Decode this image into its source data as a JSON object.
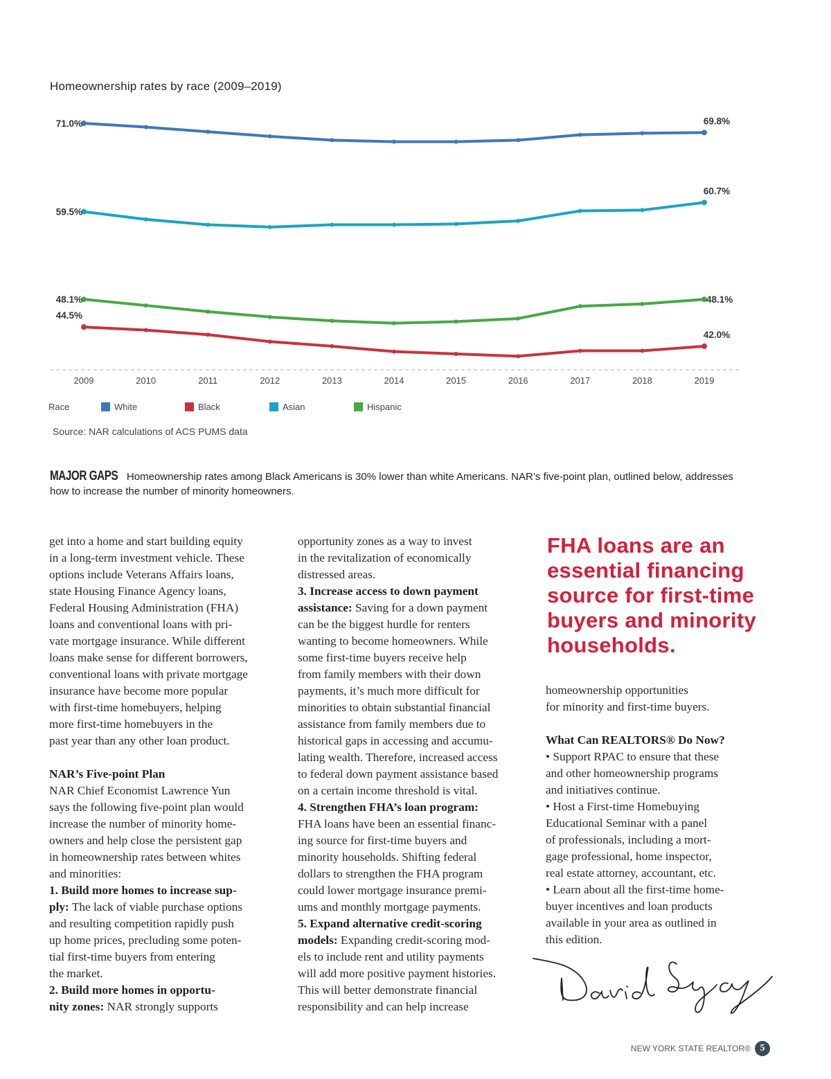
{
  "chart_data": {
    "type": "line",
    "title": "Homeownership rates by race (2009–2019)",
    "xlabel": "",
    "ylabel": "",
    "x": [
      "2009",
      "2010",
      "2011",
      "2012",
      "2013",
      "2014",
      "2015",
      "2016",
      "2017",
      "2018",
      "2019"
    ],
    "ylim": [
      40,
      72
    ],
    "grid": false,
    "legend_title": "Race",
    "legend_position": "bottom-left",
    "series": [
      {
        "name": "White",
        "color": "#3d78bd",
        "values": [
          71.0,
          70.5,
          69.9,
          69.3,
          68.8,
          68.6,
          68.6,
          68.8,
          69.5,
          69.7,
          69.8
        ],
        "start_label": "71.0%",
        "end_label": "69.8%"
      },
      {
        "name": "Black",
        "color": "#c8333d",
        "values": [
          44.5,
          44.1,
          43.5,
          42.6,
          42.0,
          41.3,
          41.0,
          40.7,
          41.4,
          41.4,
          42.0
        ],
        "start_label": "44.5%",
        "end_label": "42.0%"
      },
      {
        "name": "Asian",
        "color": "#1ba3c6",
        "values": [
          59.5,
          58.5,
          57.8,
          57.5,
          57.8,
          57.8,
          57.9,
          58.3,
          59.6,
          59.7,
          60.7
        ],
        "start_label": "59.5%",
        "end_label": "60.7%"
      },
      {
        "name": "Hispanic",
        "color": "#47a844",
        "values": [
          48.1,
          47.3,
          46.5,
          45.8,
          45.3,
          45.0,
          45.2,
          45.6,
          47.2,
          47.5,
          48.1
        ],
        "start_label": "48.1%",
        "end_label": "48.1%"
      }
    ],
    "source": "Source: NAR calculations of ACS PUMS data"
  },
  "caption": {
    "kicker": "MAJOR GAPS",
    "text": "Homeownership rates among Black Americans is 30% lower than white Americans. NAR’s five-point plan, outlined below, addresses how to increase the number of minority homeowners."
  },
  "columns": [
    [
      {
        "t": "get into a home and start building equity"
      },
      {
        "t": "in a long-term investment vehicle. These"
      },
      {
        "t": "options include Veterans Affairs loans,"
      },
      {
        "t": "state Housing Finance Agency loans,"
      },
      {
        "t": "Federal Housing Administration (FHA)"
      },
      {
        "t": "loans and conventional loans with pri-"
      },
      {
        "t": "vate mortgage insurance. While different"
      },
      {
        "t": "loans make sense for different borrowers,"
      },
      {
        "t": "conventional loans with private mortgage"
      },
      {
        "t": "insurance have become more popular"
      },
      {
        "t": "with first-time homebuyers, helping"
      },
      {
        "t": "more first-time homebuyers in the"
      },
      {
        "t": "past year than any other loan product."
      },
      {
        "t": ""
      },
      {
        "b": "NAR’s Five-point Plan"
      },
      {
        "t": "NAR Chief Economist Lawrence Yun"
      },
      {
        "t": "says the following five-point plan would"
      },
      {
        "t": "increase the number of minority home-"
      },
      {
        "t": "owners and help close the persistent gap"
      },
      {
        "t": "in homeownership rates between whites"
      },
      {
        "t": "and minorities:"
      },
      {
        "b": "1. Build more homes to increase sup-"
      },
      {
        "b": "ply:",
        "t": " The lack of viable purchase options"
      },
      {
        "t": "and resulting competition rapidly push"
      },
      {
        "t": "up home prices, precluding some poten-"
      },
      {
        "t": "tial first-time buyers from entering"
      },
      {
        "t": "the market."
      },
      {
        "b": "2. Build more homes in opportu-"
      },
      {
        "b": "nity zones:",
        "t": " NAR strongly supports"
      }
    ],
    [
      {
        "t": "opportunity zones as a way to invest"
      },
      {
        "t": "in the revitalization of economically"
      },
      {
        "t": "distressed areas."
      },
      {
        "b": "3. Increase access to down payment"
      },
      {
        "b": "assistance:",
        "t": " Saving for a down payment"
      },
      {
        "t": "can be the biggest hurdle for renters"
      },
      {
        "t": "wanting to become homeowners. While"
      },
      {
        "t": "some first-time buyers receive help"
      },
      {
        "t": "from family members with their down"
      },
      {
        "t": "payments, it’s much more difficult for"
      },
      {
        "t": "minorities to obtain substantial financial"
      },
      {
        "t": "assistance from family members due to"
      },
      {
        "t": "historical gaps in accessing and accumu-"
      },
      {
        "t": "lating wealth. Therefore, increased access"
      },
      {
        "t": "to federal down payment assistance based"
      },
      {
        "t": "on a certain income threshold is vital."
      },
      {
        "b": "4. Strengthen FHA’s loan program:"
      },
      {
        "t": "FHA loans have been an essential financ-"
      },
      {
        "t": "ing source for first-time buyers and"
      },
      {
        "t": "minority households. Shifting federal"
      },
      {
        "t": "dollars to strengthen the FHA program"
      },
      {
        "t": "could lower mortgage insurance premi-"
      },
      {
        "t": "ums and monthly mortgage payments."
      },
      {
        "b": "5. Expand alternative credit-scoring"
      },
      {
        "b": "models:",
        "t": " Expanding credit-scoring mod-"
      },
      {
        "t": "els to include rent and utility payments"
      },
      {
        "t": "will add more positive payment histories."
      },
      {
        "t": "This will better demonstrate financial"
      },
      {
        "t": "responsibility and can help increase"
      }
    ],
    [
      {
        "t": "homeownership opportunities"
      },
      {
        "t": "for minority and first-time buyers."
      },
      {
        "t": ""
      },
      {
        "b": "What Can REALTORS® Do Now?"
      },
      {
        "t": "• Support RPAC to ensure that these"
      },
      {
        "t": "and other homeownership programs"
      },
      {
        "t": "and initiatives continue."
      },
      {
        "t": "• Host a First-time Homebuying"
      },
      {
        "t": "Educational Seminar with a panel"
      },
      {
        "t": "of professionals, including a mort-"
      },
      {
        "t": "gage professional, home inspector,"
      },
      {
        "t": "real estate attorney, accountant, etc."
      },
      {
        "t": "• Learn about all the first-time home-"
      },
      {
        "t": "buyer incentives and loan products"
      },
      {
        "t": "available in your area as outlined in"
      },
      {
        "t": "this edition."
      }
    ]
  ],
  "pullquote": [
    "FHA loans are an",
    "essential financing",
    "source for first-time",
    "buyers and minority",
    "households."
  ],
  "signature": "David Legaz",
  "footer": {
    "publication": "NEW YORK STATE REALTOR®",
    "page": "5"
  }
}
